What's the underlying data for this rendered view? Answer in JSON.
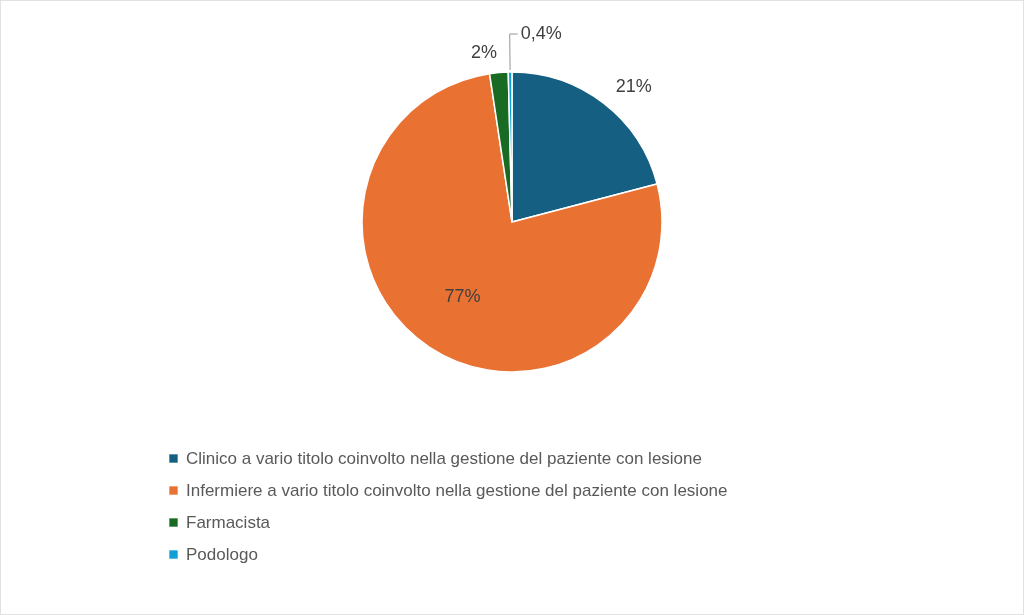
{
  "chart_data": {
    "type": "pie",
    "categories": [
      "Clinico a vario titolo coinvolto nella gestione del paziente con lesione",
      "Infermiere a vario titolo coinvolto nella gestione del paziente con lesione",
      "Farmacista",
      "Podologo"
    ],
    "values": [
      21,
      77,
      2,
      0.4
    ],
    "colors": [
      "#156082",
      "#e97132",
      "#196b24",
      "#0f9ed5"
    ],
    "value_labels": [
      "21%",
      "77%",
      "2%",
      "0,4%"
    ],
    "legend": "bottom"
  }
}
